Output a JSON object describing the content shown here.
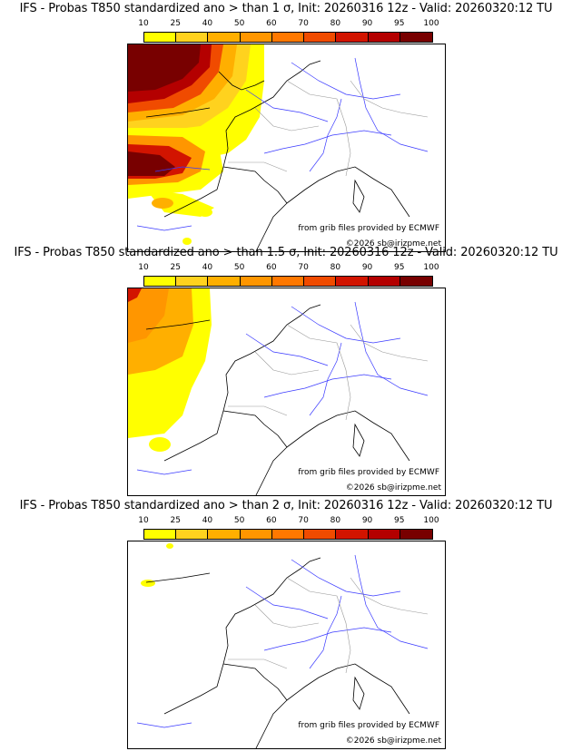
{
  "colorbar": {
    "labels": [
      "10",
      "25",
      "40",
      "50",
      "60",
      "70",
      "80",
      "90",
      "95",
      "100"
    ],
    "colors": [
      "#ffff00",
      "#ffd21e",
      "#ffaf00",
      "#ff9600",
      "#ff7800",
      "#f04b00",
      "#d21400",
      "#b40000",
      "#780000"
    ]
  },
  "panels": [
    {
      "title": "IFS - Probas T850  standardized ano > than 1 σ, Init: 20260316 12z - Valid: 20260320:12 TU",
      "credit_source": "from grib files provided by ECMWF",
      "credit_copyright": "©2026 sb@irizpme.net"
    },
    {
      "title": "IFS - Probas T850  standardized ano > than 1.5 σ, Init: 20260316 12z - Valid: 20260320:12 TU",
      "credit_source": "from grib files provided by ECMWF",
      "credit_copyright": "©2026 sb@irizpme.net"
    },
    {
      "title": "IFS - Probas T850  standardized ano > than 2 σ, Init: 20260316 12z - Valid: 20260320:12 TU",
      "credit_source": "from grib files provided by ECMWF",
      "credit_copyright": "©2026 sb@irizpme.net"
    }
  ]
}
